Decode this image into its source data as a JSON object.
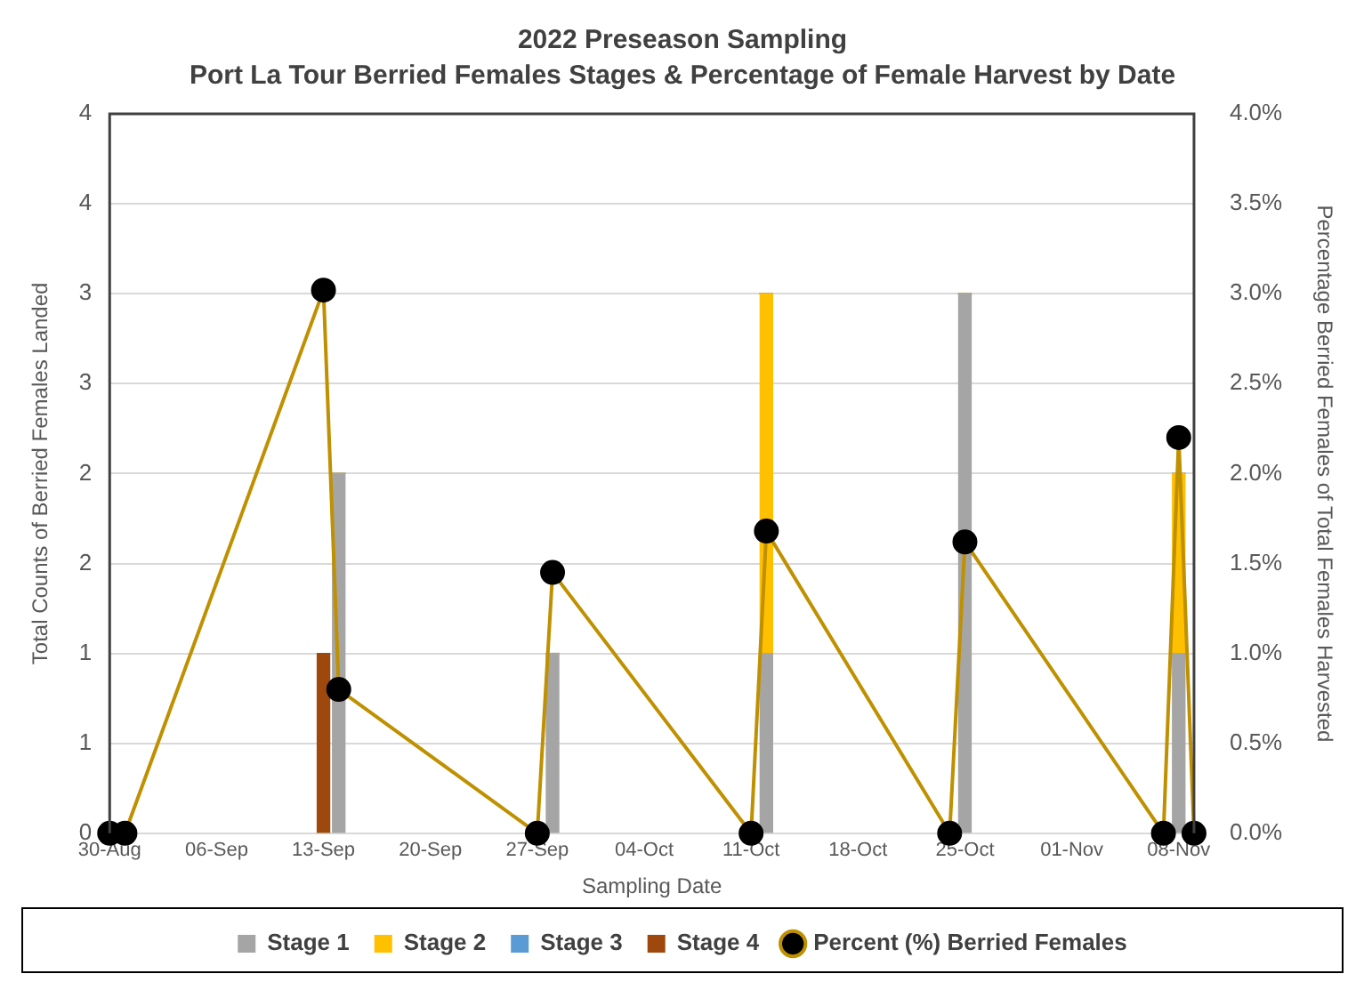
{
  "chart_data": {
    "type": "bar",
    "title": "2022 Preseason Sampling",
    "subtitle": "Port La Tour Berried Females Stages & Percentage of Female Harvest by Date",
    "xlabel": "Sampling Date",
    "ylabel": "Total Counts of Berried Females Landed",
    "y2label": "Percentage Berried Females of Total Females Harvested",
    "x": [
      "2022-09-13",
      "2022-09-14",
      "2022-09-28",
      "2022-10-12",
      "2022-10-25",
      "2022-11-08"
    ],
    "stacked": true,
    "series": [
      {
        "name": "Stage 1",
        "color": "#a5a5a5",
        "values": [
          0,
          2,
          1,
          1,
          3,
          1
        ]
      },
      {
        "name": "Stage 2",
        "color": "#ffc000",
        "values": [
          0,
          0,
          0,
          2,
          0,
          1
        ]
      },
      {
        "name": "Stage 3",
        "color": "#5b9bd5",
        "values": [
          0,
          0,
          0,
          0,
          0,
          0
        ]
      },
      {
        "name": "Stage 4",
        "color": "#9e480e",
        "values": [
          1,
          0,
          0,
          0,
          0,
          0
        ]
      },
      {
        "name": "Percent (%) Berried Females",
        "type": "line",
        "axis": "y2",
        "color": "#bf9000",
        "marker": "circle",
        "x": [
          "2022-08-30",
          "2022-08-31",
          "2022-09-13",
          "2022-09-14",
          "2022-09-27",
          "2022-09-28",
          "2022-10-11",
          "2022-10-12",
          "2022-10-24",
          "2022-10-25",
          "2022-11-07",
          "2022-11-08",
          "2022-11-09"
        ],
        "values": [
          0,
          0,
          3.02,
          0.8,
          0,
          1.45,
          0,
          1.68,
          0,
          1.62,
          0,
          2.2,
          0
        ]
      }
    ],
    "xlim": [
      "2022-08-30",
      "2022-11-09"
    ],
    "xticks": [
      {
        "value": "2022-08-30",
        "label": "30-Aug"
      },
      {
        "value": "2022-09-06",
        "label": "06-Sep"
      },
      {
        "value": "2022-09-13",
        "label": "13-Sep"
      },
      {
        "value": "2022-09-20",
        "label": "20-Sep"
      },
      {
        "value": "2022-09-27",
        "label": "27-Sep"
      },
      {
        "value": "2022-10-04",
        "label": "04-Oct"
      },
      {
        "value": "2022-10-11",
        "label": "11-Oct"
      },
      {
        "value": "2022-10-18",
        "label": "18-Oct"
      },
      {
        "value": "2022-10-25",
        "label": "25-Oct"
      },
      {
        "value": "2022-11-01",
        "label": "01-Nov"
      },
      {
        "value": "2022-11-08",
        "label": "08-Nov"
      }
    ],
    "ylim": [
      0,
      4
    ],
    "yticks": [
      0,
      {
        "value": 0.5,
        "label": "1"
      },
      1,
      {
        "value": 1.5,
        "label": "2"
      },
      2,
      {
        "value": 2.5,
        "label": "3"
      },
      3,
      {
        "value": 3.5,
        "label": "4"
      },
      4
    ],
    "y2lim": [
      0,
      4
    ],
    "y2ticks": [
      {
        "value": 0,
        "label": "0.0%"
      },
      {
        "value": 0.5,
        "label": "0.5%"
      },
      {
        "value": 1,
        "label": "1.0%"
      },
      {
        "value": 1.5,
        "label": "1.5%"
      },
      {
        "value": 2,
        "label": "2.0%"
      },
      {
        "value": 2.5,
        "label": "2.5%"
      },
      {
        "value": 3,
        "label": "3.0%"
      },
      {
        "value": 3.5,
        "label": "3.5%"
      },
      {
        "value": 4,
        "label": "4.0%"
      }
    ],
    "grid": "y",
    "legend": "bottom"
  }
}
